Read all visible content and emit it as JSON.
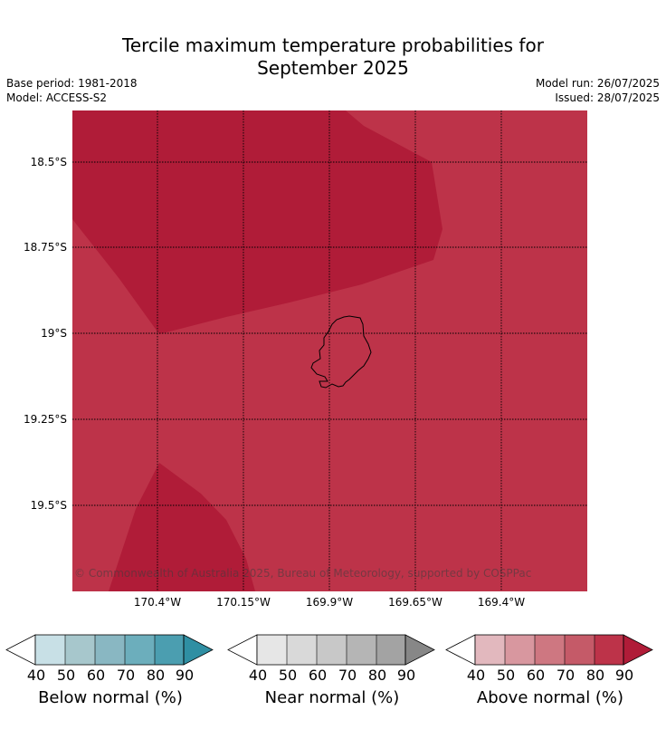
{
  "title_line1": "Tercile maximum temperature probabilities for",
  "title_line2": "September 2025",
  "base_period": "Base period: 1981-2018",
  "model": "Model: ACCESS-S2",
  "model_run": "Model run: 26/07/2025",
  "issued": "Issued: 28/07/2025",
  "lat_labels": [
    "18.5°S",
    "18.75°S",
    "19°S",
    "19.25°S",
    "19.5°S"
  ],
  "lon_labels": [
    "170.4°W",
    "170.15°W",
    "169.9°W",
    "169.65°W",
    "169.4°W"
  ],
  "copyright": "© Commonwealth of Australia 2025, Bureau of Meteorology, supported by COSPPac",
  "map_colors": {
    "above_80": "#bd3349",
    "above_90": "#b01c38",
    "coastline": "#000000",
    "gridline": "#000000"
  },
  "colorbars": [
    {
      "label": "Below normal (%)",
      "ticks": [
        "40",
        "50",
        "60",
        "70",
        "80",
        "90"
      ],
      "colors": [
        "#c8e0e6",
        "#a7c7cc",
        "#89b7c2",
        "#6caebc",
        "#4b9eb0"
      ],
      "extend_color": "#2f8fa3"
    },
    {
      "label": "Near normal (%)",
      "ticks": [
        "40",
        "50",
        "60",
        "70",
        "80",
        "90"
      ],
      "colors": [
        "#e6e6e6",
        "#d9d9d9",
        "#c8c8c8",
        "#b5b5b5",
        "#a3a3a3"
      ],
      "extend_color": "#878787"
    },
    {
      "label": "Above normal (%)",
      "ticks": [
        "40",
        "50",
        "60",
        "70",
        "80",
        "90"
      ],
      "colors": [
        "#e2b8be",
        "#d8979f",
        "#ce7781",
        "#c55a68",
        "#bd3349"
      ],
      "extend_color": "#b01c38"
    }
  ]
}
